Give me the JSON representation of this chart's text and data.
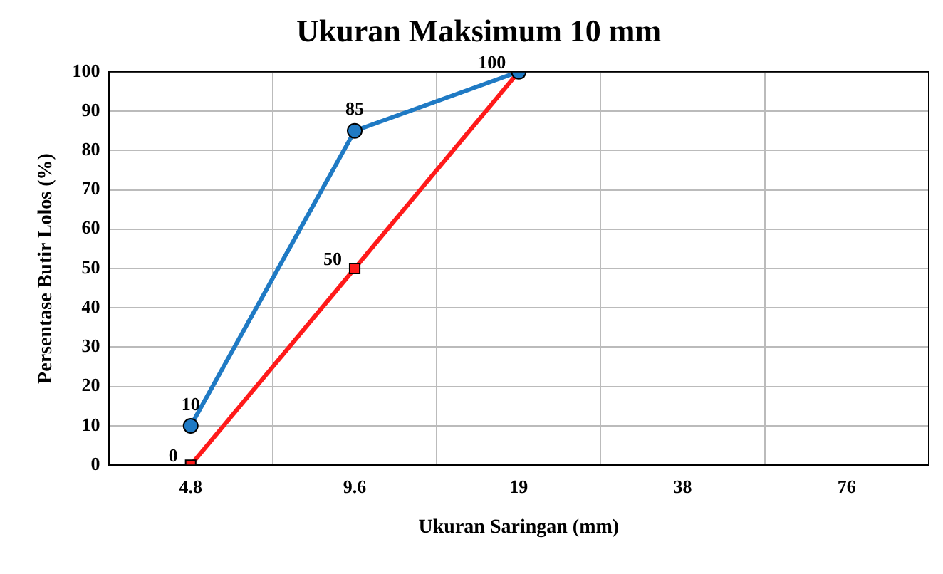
{
  "chart_data": {
    "type": "line",
    "title": "Ukuran Maksimum 10 mm",
    "xlabel": "Ukuran Saringan (mm)",
    "ylabel": "Persentase Butir Lolos (%)",
    "categories": [
      "4.8",
      "9.6",
      "19",
      "38",
      "76"
    ],
    "series": [
      {
        "color": "#1f7ac4",
        "marker": "circle",
        "values": [
          10,
          85,
          100,
          null,
          null
        ],
        "value_labels": [
          "10",
          "85",
          null,
          null,
          null
        ]
      },
      {
        "color": "#ff1a1a",
        "marker": "square",
        "values": [
          0,
          50,
          100,
          null,
          null
        ],
        "value_labels": [
          "0",
          "50",
          "100",
          null,
          null
        ]
      }
    ],
    "ylim": [
      0,
      100
    ],
    "yticks": [
      0,
      10,
      20,
      30,
      40,
      50,
      60,
      70,
      80,
      90,
      100
    ],
    "grid": true,
    "legend": false
  }
}
